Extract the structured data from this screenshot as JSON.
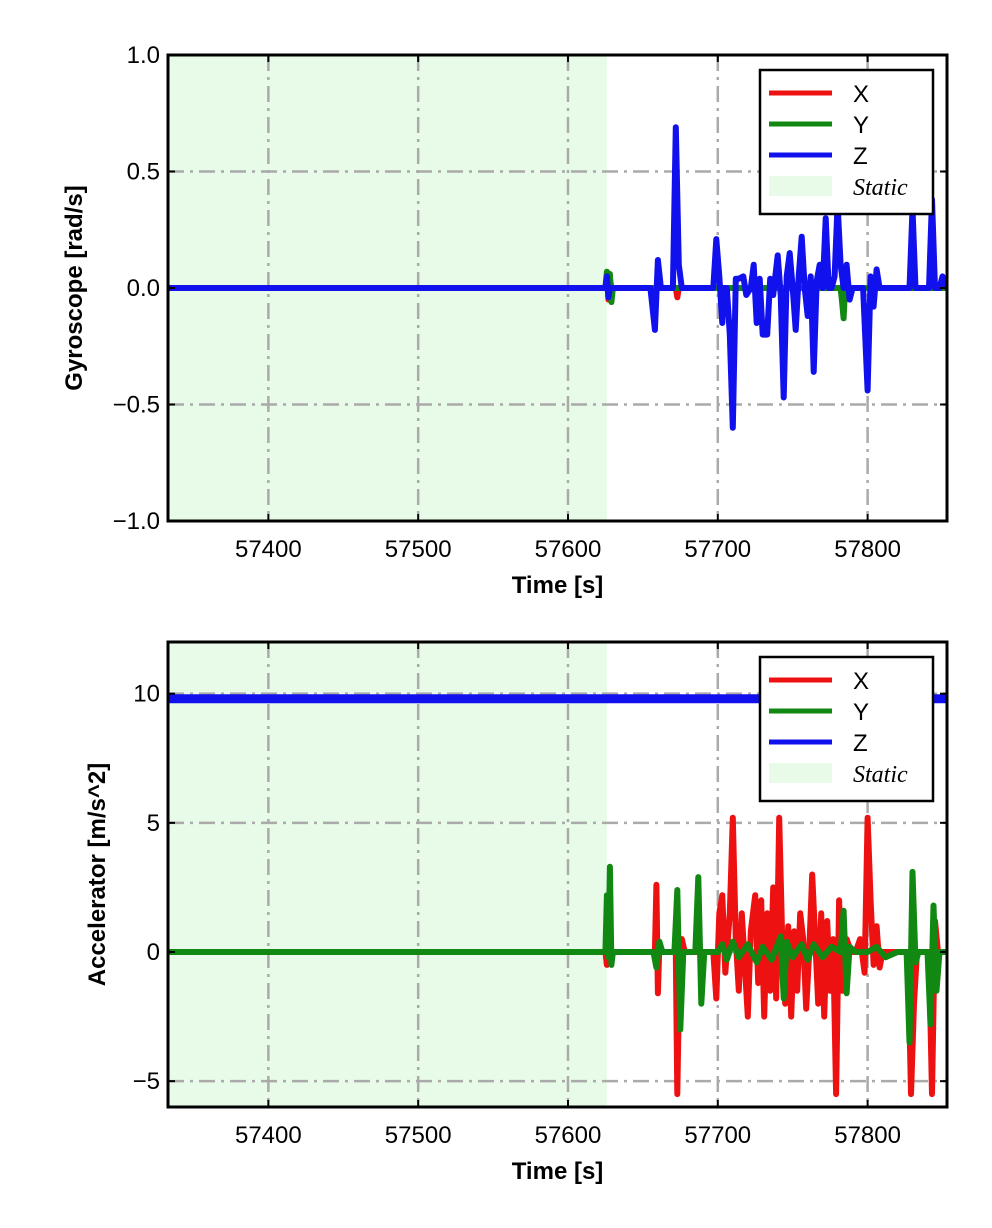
{
  "chart_data": [
    {
      "type": "line",
      "xlabel": "Time [s]",
      "ylabel": "Gyroscope [rad/s]",
      "xlim": [
        57333,
        57853
      ],
      "ylim": [
        -1.0,
        1.0
      ],
      "xticks": [
        57400,
        57500,
        57600,
        57700,
        57800
      ],
      "xtick_labels": [
        "57400",
        "57500",
        "57600",
        "57700",
        "57800"
      ],
      "yticks": [
        -1.0,
        -0.5,
        0.0,
        0.5,
        1.0
      ],
      "ytick_labels": [
        "−1.0",
        "−0.5",
        "0.0",
        "0.5",
        "1.0"
      ],
      "grid": true,
      "grid_style": "dash-dot",
      "legend_position": "top-right",
      "static_region": {
        "label": "Static",
        "x": [
          57333,
          57626
        ],
        "color": "#e8fbe8"
      },
      "series": [
        {
          "name": "X",
          "color": "#ee1111",
          "x": [
            57333,
            57625,
            57626,
            57627,
            57628,
            57629,
            57672,
            57673,
            57674,
            57853
          ],
          "y": [
            0.0,
            0.0,
            0.05,
            -0.05,
            0.04,
            0.0,
            0.0,
            -0.04,
            0.0,
            0.0
          ]
        },
        {
          "name": "Y",
          "color": "#118811",
          "x": [
            57333,
            57625,
            57626,
            57627,
            57628,
            57629,
            57630,
            57782,
            57783,
            57784,
            57785,
            57853
          ],
          "y": [
            0.0,
            0.0,
            0.07,
            -0.03,
            0.06,
            -0.06,
            0.0,
            0.0,
            -0.06,
            -0.13,
            0.0,
            0.0
          ]
        },
        {
          "name": "Z",
          "color": "#1111ee",
          "x": [
            57333,
            57625,
            57626,
            57627,
            57628,
            57655,
            57658,
            57660,
            57662,
            57664,
            57670,
            57672,
            57674,
            57676,
            57697,
            57699,
            57701,
            57703,
            57704,
            57706,
            57708,
            57710,
            57712,
            57714,
            57717,
            57719,
            57722,
            57724,
            57726,
            57728,
            57730,
            57733,
            57735,
            57737,
            57740,
            57742,
            57744,
            57746,
            57748,
            57750,
            57752,
            57754,
            57756,
            57758,
            57760,
            57762,
            57764,
            57766,
            57768,
            57770,
            57772,
            57774,
            57776,
            57778,
            57780,
            57782,
            57784,
            57786,
            57788,
            57790,
            57792,
            57794,
            57797,
            57800,
            57802,
            57804,
            57806,
            57808,
            57810,
            57826,
            57828,
            57830,
            57832,
            57834,
            57841,
            57843,
            57845,
            57848,
            57850,
            57853
          ],
          "y": [
            0.0,
            0.0,
            0.05,
            -0.04,
            0.0,
            0.0,
            -0.18,
            0.12,
            0.0,
            0.0,
            0.0,
            0.69,
            0.1,
            0.0,
            0.0,
            0.21,
            0.05,
            -0.15,
            0.0,
            0.0,
            -0.2,
            -0.6,
            0.04,
            0.04,
            0.05,
            -0.03,
            0.0,
            0.1,
            -0.15,
            0.04,
            -0.2,
            -0.2,
            0.04,
            -0.03,
            0.14,
            -0.03,
            -0.47,
            0.05,
            0.15,
            0.0,
            -0.18,
            0.05,
            0.22,
            0.0,
            -0.12,
            0.05,
            -0.36,
            0.03,
            0.1,
            0.0,
            0.3,
            0.0,
            0.0,
            0.05,
            0.36,
            0.1,
            0.0,
            0.1,
            -0.05,
            0.0,
            0.0,
            0.0,
            0.0,
            -0.44,
            0.05,
            -0.08,
            0.08,
            0.0,
            0.0,
            0.0,
            0.0,
            0.34,
            0.0,
            0.0,
            0.0,
            0.38,
            0.0,
            0.0,
            0.05,
            0.0
          ]
        }
      ]
    },
    {
      "type": "line",
      "xlabel": "Time [s]",
      "ylabel": "Accelerator [m/s^2]",
      "xlim": [
        57333,
        57853
      ],
      "ylim": [
        -6.0,
        12.0
      ],
      "xticks": [
        57400,
        57500,
        57600,
        57700,
        57800
      ],
      "xtick_labels": [
        "57400",
        "57500",
        "57600",
        "57700",
        "57800"
      ],
      "yticks": [
        -5,
        0,
        5,
        10
      ],
      "ytick_labels": [
        "−5",
        "0",
        "5",
        "10"
      ],
      "grid": true,
      "grid_style": "dash-dot",
      "legend_position": "top-right",
      "static_region": {
        "label": "Static",
        "x": [
          57333,
          57626
        ],
        "color": "#e8fbe8"
      },
      "series": [
        {
          "name": "X",
          "color": "#ee1111",
          "x": [
            57333,
            57625,
            57626,
            57627,
            57628,
            57658,
            57659,
            57660,
            57661,
            57662,
            57672,
            57673,
            57674,
            57676,
            57678,
            57697,
            57699,
            57701,
            57703,
            57705,
            57708,
            57710,
            57712,
            57714,
            57716,
            57718,
            57720,
            57722,
            57725,
            57727,
            57729,
            57731,
            57733,
            57735,
            57737,
            57739,
            57741,
            57743,
            57745,
            57747,
            57749,
            57751,
            57753,
            57755,
            57757,
            57759,
            57761,
            57763,
            57765,
            57767,
            57769,
            57771,
            57773,
            57775,
            57777,
            57779,
            57781,
            57783,
            57786,
            57789,
            57792,
            57795,
            57798,
            57800,
            57802,
            57804,
            57806,
            57808,
            57810,
            57827,
            57829,
            57831,
            57833,
            57841,
            57843,
            57845,
            57847,
            57853
          ],
          "y": [
            0.0,
            0.0,
            -0.5,
            0.3,
            0.0,
            0.0,
            2.6,
            -1.6,
            0.3,
            0.0,
            0.0,
            -5.5,
            -2.0,
            0.5,
            0.0,
            0.0,
            -1.8,
            1.5,
            2.2,
            -0.8,
            1.5,
            5.2,
            0.5,
            -1.5,
            1.5,
            -0.5,
            -2.5,
            0.8,
            2.2,
            -1.2,
            2.0,
            -2.5,
            1.5,
            -1.5,
            2.5,
            -1.8,
            5.2,
            0.5,
            -2.0,
            1.0,
            -2.5,
            0.8,
            -1.5,
            1.5,
            0.5,
            -2.2,
            0.0,
            3.0,
            0.5,
            -2.0,
            1.5,
            -2.5,
            1.2,
            -1.5,
            0.5,
            -5.5,
            2.0,
            -1.5,
            0.5,
            0.0,
            0.0,
            0.5,
            -0.8,
            5.2,
            2.0,
            -0.5,
            1.0,
            -0.6,
            0.0,
            0.0,
            -5.5,
            -2.0,
            0.0,
            0.0,
            -5.5,
            1.2,
            0.0,
            0.0
          ]
        },
        {
          "name": "Y",
          "color": "#118811",
          "x": [
            57333,
            57625,
            57626,
            57627,
            57628,
            57629,
            57630,
            57657,
            57659,
            57661,
            57663,
            57671,
            57673,
            57675,
            57677,
            57685,
            57687,
            57689,
            57691,
            57700,
            57703,
            57706,
            57710,
            57714,
            57720,
            57726,
            57730,
            57736,
            57740,
            57742,
            57744,
            57746,
            57750,
            57756,
            57760,
            57764,
            57770,
            57776,
            57782,
            57784,
            57786,
            57788,
            57792,
            57800,
            57806,
            57812,
            57820,
            57826,
            57828,
            57830,
            57832,
            57834,
            57840,
            57842,
            57844,
            57846,
            57848,
            57853
          ],
          "y": [
            0.0,
            0.0,
            2.2,
            -0.2,
            3.3,
            -0.5,
            0.0,
            0.0,
            -0.6,
            0.4,
            0.0,
            0.0,
            2.4,
            -3.0,
            0.0,
            0.0,
            2.9,
            -2.0,
            0.0,
            0.0,
            0.3,
            -0.3,
            0.4,
            -0.2,
            0.3,
            -0.4,
            0.2,
            -0.3,
            0.3,
            0.6,
            -1.8,
            0.4,
            -0.2,
            0.3,
            -0.3,
            0.3,
            -0.2,
            0.2,
            0.0,
            1.6,
            -1.6,
            0.2,
            0.0,
            0.0,
            0.2,
            -0.2,
            0.0,
            0.0,
            -3.5,
            3.1,
            -0.4,
            0.0,
            0.0,
            -2.8,
            1.8,
            -1.5,
            0.0,
            0.0
          ]
        },
        {
          "name": "Z",
          "color": "#1111ee",
          "x": [
            57333,
            57853
          ],
          "y": [
            9.8,
            9.8
          ]
        }
      ]
    }
  ]
}
